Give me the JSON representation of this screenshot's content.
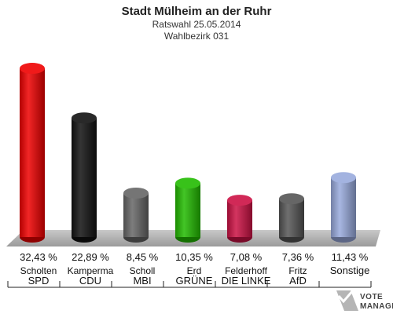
{
  "header": {
    "title": "Stadt Mülheim an der Ruhr",
    "subtitle_1": "Ratswahl 25.05.2014",
    "subtitle_2": "Wahlbezirk 031"
  },
  "chart_data": {
    "type": "bar",
    "title": "Stadt Mülheim an der Ruhr",
    "subtitle": [
      "Ratswahl 25.05.2014",
      "Wahlbezirk 031"
    ],
    "categories": [
      "SPD",
      "CDU",
      "MBI",
      "GRÜNE",
      "DIE LINKE",
      "AfD",
      "Sonstige"
    ],
    "candidates": [
      "Scholten",
      "Kamperma",
      "Scholl",
      "Erd",
      "Felderhoff",
      "Fritz",
      ""
    ],
    "values": [
      32.43,
      22.89,
      8.45,
      10.35,
      7.08,
      7.36,
      11.43
    ],
    "value_labels": [
      "32,43 %",
      "22,89 %",
      "8,45 %",
      "10,35 %",
      "7,08 %",
      "7,36 %",
      "11,43 %"
    ],
    "colors": [
      "#ee0000",
      "#111111",
      "#666666",
      "#22bb00",
      "#cc1144",
      "#555555",
      "#99aadd"
    ],
    "ylim": [
      0,
      35
    ],
    "grid": false,
    "xlabel": "",
    "ylabel": ""
  },
  "logo": {
    "line1": "VOTE",
    "line2": "MANAGER"
  }
}
